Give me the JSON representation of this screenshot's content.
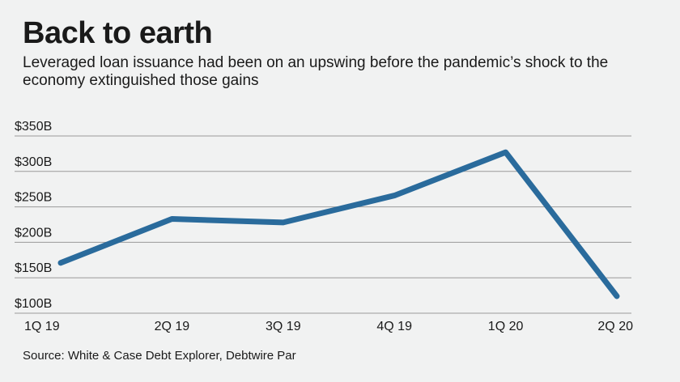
{
  "title": "Back to earth",
  "subtitle": "Leveraged loan issuance had been on an upswing before the pandemic’s shock to the economy extinguished those gains",
  "source": "Source: White & Case Debt Explorer, Debtwire Par",
  "colors": {
    "line": "#2a6b9c",
    "grid": "#9a9a9a",
    "background": "#f1f2f2",
    "text": "#1a1a1a"
  },
  "chart_data": {
    "type": "line",
    "title": "Back to earth",
    "xlabel": "",
    "ylabel": "",
    "categories": [
      "1Q 19",
      "2Q 19",
      "3Q 19",
      "4Q 19",
      "1Q 20",
      "2Q 20"
    ],
    "series": [
      {
        "values": [
          171,
          233,
          228,
          266,
          327,
          124
        ]
      }
    ],
    "ylim": [
      100,
      350
    ],
    "yticks": [
      100,
      150,
      200,
      250,
      300,
      350
    ],
    "ytick_labels": [
      "$100B",
      "$150B",
      "$200B",
      "$250B",
      "$300B",
      "$350B"
    ],
    "grid": true,
    "legend": "none"
  }
}
